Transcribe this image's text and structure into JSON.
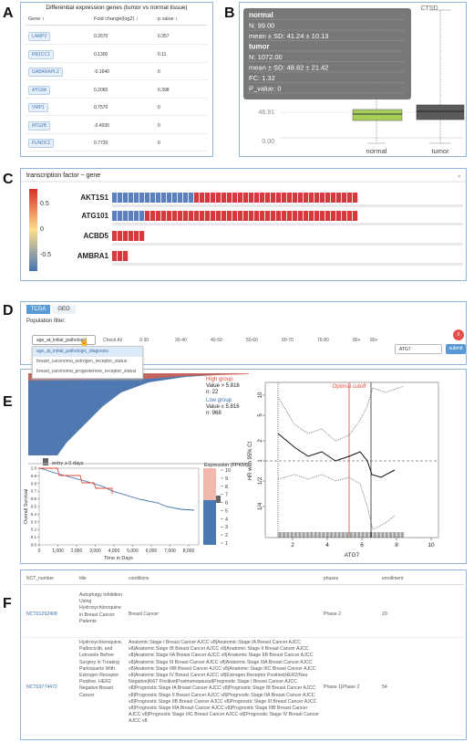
{
  "panels": [
    "A",
    "B",
    "C",
    "D",
    "E",
    "F"
  ],
  "degs": {
    "title": "Differential expression genes (tumor vs normal tissue)",
    "headers": [
      "Gene ↕",
      "Fold change(log2) ↕",
      "p value ↕"
    ],
    "rows": [
      [
        "LAMP2",
        "0.2670",
        "0.357"
      ],
      [
        "RB1CC1",
        "0.1300",
        "0.11"
      ],
      [
        "GABARAPL2",
        "-0.1640",
        "0"
      ],
      [
        "ATG9A",
        "0.2060",
        "0.398"
      ],
      [
        "VMP1",
        "0.7570",
        "0"
      ],
      [
        "ATG2B",
        "-0.4030",
        "0"
      ],
      [
        "FUNDC1",
        "0.7720",
        "0"
      ]
    ]
  },
  "boxplot": {
    "title": "CTSD",
    "tooltip": [
      "normal",
      "N: 99.00",
      "mean ± SD: 41.24 ± 10.13",
      "tumor",
      "N: 1072.00",
      "mean ± SD: 48.82 ± 21.42",
      "FC: 1.32",
      "P_value: 0"
    ],
    "yticks": [
      "46.91",
      "0.00"
    ],
    "categories": [
      "normal",
      "tumor"
    ]
  },
  "tf": {
    "title": "transcription factor ~ gene",
    "colorbar_ticks": [
      "0.5",
      "0",
      "-0.5"
    ],
    "genes": [
      {
        "name": "AKT1S1",
        "n_negative": 15,
        "n_positive": 30
      },
      {
        "name": "ATG101",
        "n_negative": 6,
        "n_positive": 39
      },
      {
        "name": "ACBD5",
        "n_negative": 0,
        "n_positive": 6
      },
      {
        "name": "AMBRA1",
        "n_negative": 0,
        "n_positive": 3
      }
    ]
  },
  "filter": {
    "tabs": [
      "TCGA",
      "GEO"
    ],
    "label": "Population filter:",
    "dropdown": "age_at_initial_pathologic",
    "check_all": "Check All",
    "ranges": [
      "0-30",
      "30-40",
      "40-50",
      "50-60",
      "60-70",
      "70-80",
      "80+",
      "80+"
    ],
    "options": [
      "age_at_initial_pathologic_diagnosis",
      "breast_carcinoma_estrogen_receptor_status",
      "breast_carcinoma_progesterone_receptor_status"
    ],
    "gene": "ATG7",
    "submit": "submit",
    "badge": "0"
  },
  "survival": {
    "entry": "entry ≥ 0 days",
    "high": [
      "High group",
      "Value > 5.816",
      "n: 22"
    ],
    "low": [
      "Low group",
      "Value ≤ 5.816",
      "n: 968"
    ],
    "expr_label": "Expression (FPKM)",
    "expr_ticks": [
      "10",
      "9",
      "8",
      "7",
      "6",
      "5",
      "4",
      "3",
      "2",
      "1"
    ],
    "km": {
      "ylabel": "Overall Survival",
      "xlabel": "Time in Days",
      "yticks": [
        "0.0",
        "0.1",
        "0.2",
        "0.3",
        "0.4",
        "0.5",
        "0.6",
        "0.7",
        "0.8",
        "0.9",
        "1.0"
      ],
      "xticks": [
        "0",
        "1,000",
        "2,000",
        "3,000",
        "4,000",
        "5,000",
        "6,000",
        "7,000",
        "8,000"
      ]
    },
    "hr": {
      "cutoff": "Optimal cutoff",
      "ylabel": "HR with 95% CI",
      "yticks": [
        "10",
        "5",
        "2",
        "1",
        "1/2",
        "1/4"
      ],
      "xticks": [
        "2",
        "4",
        "6",
        "8",
        "10"
      ],
      "xlabel": "ATG7"
    }
  },
  "trials": {
    "headers": [
      "NCT_number",
      "title",
      "conditions",
      "phases",
      "enrollment"
    ],
    "rows": [
      [
        "NCT01292408",
        "Autophagy Inhibition Using Hydroxychloroquine in Breast Cancer Patients",
        "Breast Cancer",
        "Phase 2",
        "20"
      ],
      [
        "NCT03774472",
        "Hydroxychloroquine, Palbociclib, and Letrozole Before Surgery in Treating Participants With Estrogen Receptor Positive, HER2 Negative Breast Cancer",
        "Anatomic Stage I Breast Cancer AJCC v8|Anatomic Stage IA Breast Cancer AJCC v8|Anatomic Stage IB Breast Cancer AJCC v8|Anatomic Stage II Breast Cancer AJCC v8|Anatomic Stage IIA Breast Cancer AJCC v8|Anatomic Stage IIB Breast Cancer AJCC v8|Anatomic Stage III Breast Cancer AJCC v8|Anatomic Stage IIIA Breast Cancer AJCC v8|Anatomic Stage IIIB Breast Cancer AJCC v8|Anatomic Stage IIIC Breast Cancer AJCC v8|Anatomic Stage IV Breast Cancer AJCC v8|Estrogen Receptor Positive|HER2/Neu Negative|Ki67 Positive|Postmenopausal|Prognostic Stage I Breast Cancer AJCC v8|Prognostic Stage IA Breast Cancer AJCC v8|Prognostic Stage IB Breast Cancer AJCC v8|Prognostic Stage II Breast Cancer AJCC v8|Prognostic Stage IIA Breast Cancer AJCC v8|Prognostic Stage IIB Breast Cancer AJCC v8|Prognostic Stage III Breast Cancer AJCC v8|Prognostic Stage IIIA Breast Cancer AJCC v8|Prognostic Stage IIIB Breast Cancer AJCC v8|Prognostic Stage IIIC Breast Cancer AJCC v8|Prognostic Stage IV Breast Cancer AJCC v8",
        "Phase 1|Phase 2",
        "54"
      ]
    ]
  }
}
